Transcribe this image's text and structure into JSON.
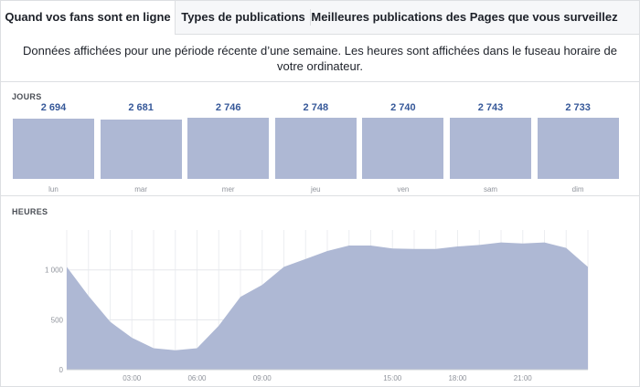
{
  "tabs": [
    {
      "label": "Quand vos fans sont en ligne",
      "active": true
    },
    {
      "label": "Types de publications",
      "active": false
    },
    {
      "label": "Meilleures publications des Pages que vous surveillez",
      "active": false
    }
  ],
  "notice": "Données affichées pour une période récente d’une semaine. Les heures sont affichées dans le fuseau horaire de votre ordinateur.",
  "colors": {
    "bar_fill": "#aeb8d4",
    "value_text": "#365899",
    "axis_text": "#90949c"
  },
  "chart_data": [
    {
      "type": "bar",
      "label": "JOURS",
      "categories": [
        "lun",
        "mar",
        "mer",
        "jeu",
        "ven",
        "sam",
        "dim"
      ],
      "values": [
        2694,
        2681,
        2746,
        2748,
        2740,
        2743,
        2733
      ],
      "value_labels": [
        "2 694",
        "2 681",
        "2 746",
        "2 748",
        "2 740",
        "2 743",
        "2 733"
      ]
    },
    {
      "type": "area",
      "label": "HEURES",
      "x": [
        0,
        1,
        2,
        3,
        4,
        5,
        6,
        7,
        8,
        9,
        10,
        11,
        12,
        13,
        14,
        15,
        16,
        17,
        18,
        19,
        20,
        21,
        22,
        23,
        24
      ],
      "values": [
        1030,
        740,
        480,
        320,
        215,
        195,
        215,
        440,
        730,
        850,
        1030,
        1110,
        1190,
        1245,
        1245,
        1215,
        1210,
        1210,
        1235,
        1250,
        1275,
        1265,
        1275,
        1220,
        1030
      ],
      "ylim": [
        0,
        1400
      ],
      "yticks": [
        0,
        500,
        1000
      ],
      "ytick_labels": [
        "0",
        "500",
        "1 000"
      ],
      "xticks": [
        3,
        6,
        9,
        15,
        18,
        21
      ],
      "xtick_labels": [
        "03:00",
        "06:00",
        "09:00",
        "15:00",
        "18:00",
        "21:00"
      ],
      "grid": true
    }
  ]
}
